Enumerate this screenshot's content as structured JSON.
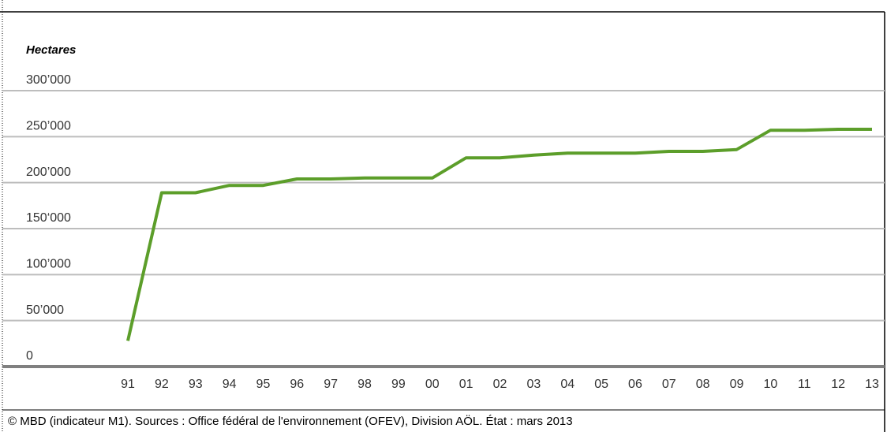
{
  "chart_data": {
    "type": "line",
    "y_label": "Hectares",
    "categories": [
      "91",
      "92",
      "93",
      "94",
      "95",
      "96",
      "97",
      "98",
      "99",
      "00",
      "01",
      "02",
      "03",
      "04",
      "05",
      "06",
      "07",
      "08",
      "09",
      "10",
      "11",
      "12",
      "13"
    ],
    "series": [
      {
        "name": "Hectares",
        "color": "#5c9e2a",
        "values": [
          28000,
          189000,
          189000,
          197000,
          197000,
          204000,
          204000,
          205000,
          205000,
          205000,
          227000,
          227000,
          230000,
          232000,
          232000,
          232000,
          234000,
          234000,
          236000,
          257000,
          257000,
          258000,
          258000
        ]
      }
    ],
    "ylim": [
      0,
      300000
    ],
    "yticks": [
      0,
      {
        "value": 50000,
        "label": "50’000"
      },
      {
        "value": 100000,
        "label": "100’000"
      },
      {
        "value": 150000,
        "label": "150‘000"
      },
      {
        "value": 200000,
        "label": "200’000"
      },
      {
        "value": 250000,
        "label": "250’000"
      },
      {
        "value": 300000,
        "label": "300’000"
      }
    ],
    "grid": true,
    "source": "© MBD (indicateur M1). Sources : Office fédéral de l'environnement (OFEV), Division AÖL. État : mars 2013"
  }
}
